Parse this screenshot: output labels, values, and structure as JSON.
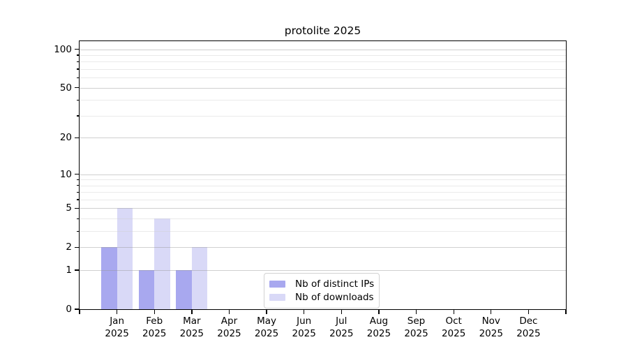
{
  "chart_data": {
    "type": "bar",
    "title": "protolite 2025",
    "year": "2025",
    "categories": [
      "Jan",
      "Feb",
      "Mar",
      "Apr",
      "May",
      "Jun",
      "Jul",
      "Aug",
      "Sep",
      "Oct",
      "Nov",
      "Dec"
    ],
    "series": [
      {
        "name": "Nb of distinct IPs",
        "color": "#a8a8ef",
        "values": [
          2,
          1,
          1,
          0,
          0,
          0,
          0,
          0,
          0,
          0,
          0,
          0
        ]
      },
      {
        "name": "Nb of downloads",
        "color": "#d9d9f7",
        "values": [
          5,
          4,
          2,
          0,
          0,
          0,
          0,
          0,
          0,
          0,
          0,
          0
        ]
      }
    ],
    "yscale": "log10(1+y)",
    "ylim": [
      0,
      115
    ],
    "yticks": [
      0,
      1,
      2,
      5,
      10,
      20,
      50,
      100
    ],
    "ytick_labels": [
      "0",
      "1",
      "2",
      "5",
      "10",
      "20",
      "50",
      "100"
    ],
    "minor_yticks": [
      3,
      4,
      6,
      7,
      8,
      9,
      30,
      40,
      60,
      70,
      80,
      90
    ],
    "grid": "horizontal",
    "legend_position": "bottom-center",
    "background_color": "#ffffff",
    "axis_color": "#000000",
    "grid_major_color": "#c9c9c9",
    "grid_minor_color": "#e9e9e9"
  }
}
